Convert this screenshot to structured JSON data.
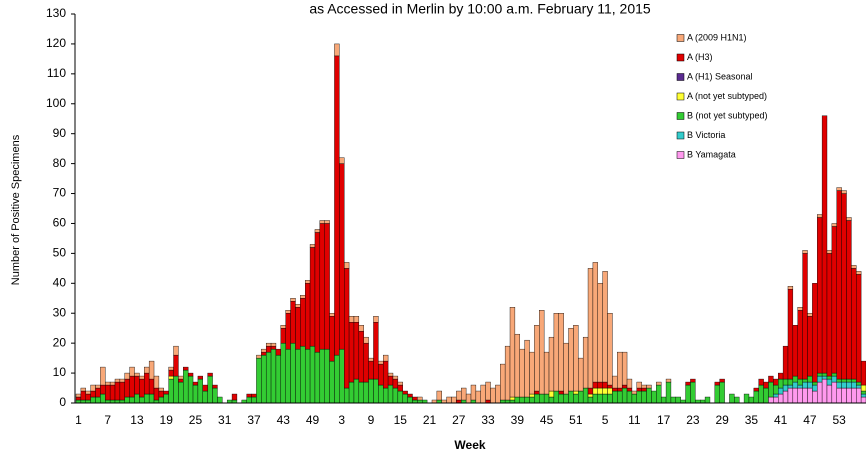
{
  "chart_data": {
    "type": "bar",
    "stacked": true,
    "title": "as Accessed in Merlin by 10:00 a.m. February 11, 2015",
    "x_label": "Week",
    "y_label": "Number of Positive Specimens",
    "ylim": [
      0,
      130
    ],
    "yticks": [
      0,
      10,
      20,
      30,
      40,
      50,
      60,
      70,
      80,
      90,
      100,
      110,
      120,
      130
    ],
    "grid": false,
    "legend_position": "top-right",
    "categories": [
      "1",
      null,
      null,
      null,
      null,
      null,
      "7",
      null,
      null,
      null,
      null,
      null,
      "13",
      null,
      null,
      null,
      null,
      null,
      "19",
      null,
      null,
      null,
      null,
      null,
      "25",
      null,
      null,
      null,
      null,
      null,
      "31",
      null,
      null,
      null,
      null,
      null,
      "37",
      null,
      null,
      null,
      null,
      null,
      "43",
      null,
      null,
      null,
      null,
      null,
      "49",
      null,
      null,
      null,
      null,
      null,
      "3",
      null,
      null,
      null,
      null,
      null,
      "9",
      null,
      null,
      null,
      null,
      null,
      "15",
      null,
      null,
      null,
      null,
      null,
      "21",
      null,
      null,
      null,
      null,
      null,
      "27",
      null,
      null,
      null,
      null,
      null,
      "33",
      null,
      null,
      null,
      null,
      null,
      "39",
      null,
      null,
      null,
      null,
      null,
      "45",
      null,
      null,
      null,
      null,
      null,
      "51",
      null,
      null,
      null,
      null,
      null,
      "5",
      null,
      null,
      null,
      null,
      null,
      "11",
      null,
      null,
      null,
      null,
      null,
      "17",
      null,
      null,
      null,
      null,
      null,
      "23",
      null,
      null,
      null,
      null,
      null,
      "29",
      null,
      null,
      null,
      null,
      null,
      "35",
      null,
      null,
      null,
      null,
      null,
      "41",
      null,
      null,
      null,
      null,
      null,
      "47",
      null,
      null,
      null,
      null,
      null,
      "53",
      null,
      null,
      null,
      null,
      null
    ],
    "series": [
      {
        "name": "A (2009 H1N1)",
        "color": "#f8a878",
        "values": [
          1,
          1,
          1,
          2,
          1,
          6,
          1,
          1,
          1,
          1,
          2,
          3,
          1,
          1,
          2,
          6,
          4,
          1,
          0,
          1,
          3,
          1,
          0,
          0,
          0,
          0,
          0,
          0,
          0,
          0,
          0,
          0,
          0,
          0,
          0,
          0,
          0,
          1,
          1,
          1,
          1,
          0,
          1,
          1,
          1,
          1,
          1,
          1,
          1,
          1,
          1,
          1,
          1,
          4,
          2,
          2,
          2,
          2,
          2,
          2,
          1,
          2,
          1,
          2,
          1,
          1,
          1,
          0,
          0,
          0,
          1,
          0,
          0,
          1,
          3,
          1,
          2,
          2,
          3,
          4,
          3,
          5,
          4,
          6,
          6,
          5,
          6,
          12,
          18,
          30,
          21,
          16,
          19,
          14,
          22,
          28,
          14,
          18,
          26,
          26,
          17,
          21,
          22,
          11,
          17,
          40,
          40,
          33,
          37,
          24,
          4,
          12,
          11,
          3,
          1,
          2,
          1,
          1,
          0,
          1,
          0,
          1,
          0,
          0,
          0,
          0,
          0,
          0,
          0,
          0,
          0,
          0,
          0,
          0,
          0,
          0,
          0,
          0,
          0,
          0,
          0,
          0,
          0,
          0,
          0,
          0,
          1,
          0,
          1,
          1,
          1,
          0,
          1,
          0,
          1,
          1,
          1,
          1,
          1,
          1,
          1,
          0
        ]
      },
      {
        "name": "A (H3)",
        "color": "#e00000",
        "values": [
          1,
          3,
          2,
          2,
          3,
          3,
          5,
          5,
          6,
          6,
          6,
          7,
          6,
          6,
          7,
          5,
          4,
          2,
          1,
          2,
          7,
          1,
          1,
          1,
          1,
          1,
          2,
          1,
          1,
          0,
          0,
          0,
          2,
          0,
          0,
          1,
          1,
          0,
          1,
          2,
          1,
          2,
          5,
          12,
          14,
          14,
          16,
          22,
          33,
          40,
          42,
          42,
          15,
          100,
          62,
          40,
          20,
          19,
          17,
          13,
          6,
          19,
          7,
          9,
          3,
          3,
          2,
          1,
          1,
          1,
          0,
          0,
          0,
          0,
          0,
          0,
          0,
          0,
          1,
          0,
          0,
          0,
          0,
          0,
          1,
          0,
          0,
          0,
          0,
          0,
          0,
          0,
          0,
          0,
          1,
          0,
          0,
          0,
          0,
          1,
          0,
          0,
          0,
          0,
          0,
          2,
          2,
          2,
          2,
          1,
          1,
          1,
          1,
          1,
          0,
          1,
          1,
          0,
          0,
          0,
          0,
          0,
          0,
          0,
          0,
          1,
          1,
          0,
          0,
          0,
          0,
          1,
          1,
          0,
          0,
          0,
          0,
          0,
          0,
          1,
          2,
          2,
          2,
          2,
          2,
          11,
          30,
          17,
          23,
          42,
          20,
          33,
          52,
          86,
          41,
          49,
          63,
          62,
          53,
          37,
          36,
          8
        ]
      },
      {
        "name": "A (H1) Seasonal",
        "color": "#5a2a90",
        "values": [
          0,
          0,
          0,
          0,
          0,
          0,
          0,
          0,
          0,
          0,
          0,
          0,
          0,
          0,
          0,
          0,
          0,
          0,
          0,
          0,
          0,
          0,
          0,
          0,
          0,
          0,
          0,
          0,
          0,
          0,
          0,
          0,
          0,
          0,
          0,
          0,
          0,
          0,
          0,
          0,
          0,
          0,
          0,
          0,
          0,
          0,
          0,
          0,
          0,
          0,
          0,
          0,
          0,
          0,
          0,
          0,
          0,
          0,
          0,
          0,
          0,
          0,
          0,
          0,
          0,
          0,
          0,
          0,
          0,
          0,
          0,
          0,
          0,
          0,
          0,
          0,
          0,
          0,
          0,
          0,
          0,
          0,
          0,
          0,
          0,
          0,
          0,
          0,
          0,
          0,
          0,
          0,
          0,
          0,
          0,
          0,
          0,
          0,
          0,
          0,
          0,
          0,
          0,
          0,
          0,
          0,
          0,
          0,
          0,
          0,
          0,
          0,
          0,
          0,
          0,
          0,
          0,
          0,
          0,
          0,
          0,
          0,
          0,
          0,
          0,
          0,
          0,
          0,
          0,
          0,
          0,
          0,
          0,
          0,
          0,
          0,
          0,
          0,
          0,
          0,
          0,
          0,
          0,
          0,
          0,
          0,
          0,
          0,
          0,
          0,
          0,
          0,
          0,
          0,
          0,
          0,
          0,
          0,
          0,
          0,
          0,
          0
        ]
      },
      {
        "name": "A (not yet subtyped)",
        "color": "#ffff33",
        "values": [
          0,
          0,
          0,
          0,
          0,
          0,
          0,
          0,
          0,
          0,
          0,
          0,
          0,
          0,
          0,
          0,
          0,
          0,
          0,
          1,
          0,
          0,
          0,
          0,
          0,
          0,
          0,
          0,
          0,
          0,
          0,
          0,
          0,
          0,
          0,
          0,
          0,
          0,
          0,
          0,
          0,
          0,
          0,
          0,
          0,
          0,
          0,
          0,
          0,
          0,
          0,
          0,
          0,
          0,
          0,
          0,
          0,
          0,
          0,
          0,
          0,
          0,
          0,
          0,
          0,
          0,
          0,
          0,
          0,
          0,
          0,
          0,
          0,
          0,
          0,
          0,
          0,
          0,
          0,
          0,
          0,
          0,
          0,
          0,
          0,
          0,
          0,
          0,
          0,
          1,
          0,
          0,
          0,
          1,
          0,
          0,
          0,
          2,
          0,
          0,
          0,
          0,
          1,
          0,
          0,
          1,
          2,
          2,
          2,
          2,
          0,
          0,
          0,
          0,
          0,
          0,
          0,
          0,
          0,
          0,
          0,
          0,
          0,
          0,
          0,
          0,
          0,
          0,
          0,
          0,
          0,
          0,
          0,
          0,
          0,
          0,
          0,
          0,
          0,
          0,
          0,
          0,
          0,
          0,
          0,
          0,
          0,
          0,
          0,
          0,
          0,
          0,
          0,
          0,
          0,
          0,
          0,
          0,
          0,
          0,
          0,
          2
        ]
      },
      {
        "name": "B (not yet subtyped)",
        "color": "#33cc33",
        "values": [
          1,
          1,
          1,
          2,
          2,
          3,
          1,
          1,
          1,
          1,
          2,
          2,
          3,
          2,
          3,
          3,
          1,
          2,
          3,
          8,
          9,
          7,
          11,
          9,
          6,
          8,
          4,
          9,
          5,
          2,
          0,
          1,
          1,
          0,
          1,
          2,
          2,
          15,
          16,
          17,
          18,
          16,
          20,
          18,
          20,
          18,
          19,
          18,
          19,
          17,
          18,
          18,
          14,
          16,
          18,
          5,
          7,
          8,
          7,
          7,
          8,
          8,
          6,
          5,
          6,
          5,
          4,
          3,
          2,
          1,
          1,
          1,
          0,
          0,
          1,
          0,
          0,
          0,
          0,
          1,
          0,
          1,
          0,
          0,
          0,
          0,
          0,
          1,
          1,
          1,
          2,
          2,
          2,
          2,
          3,
          3,
          3,
          2,
          4,
          3,
          3,
          4,
          3,
          4,
          5,
          2,
          3,
          3,
          3,
          3,
          4,
          4,
          5,
          4,
          3,
          4,
          4,
          5,
          4,
          6,
          2,
          7,
          2,
          2,
          1,
          6,
          7,
          1,
          1,
          2,
          0,
          6,
          7,
          0,
          3,
          2,
          0,
          3,
          2,
          4,
          6,
          5,
          5,
          3,
          3,
          2,
          2,
          2,
          2,
          1,
          2,
          1,
          1,
          1,
          1,
          1,
          1,
          1,
          1,
          1,
          1,
          1
        ]
      },
      {
        "name": "B Victoria",
        "color": "#33cccc",
        "values": [
          0,
          0,
          0,
          0,
          0,
          0,
          0,
          0,
          0,
          0,
          0,
          0,
          0,
          0,
          0,
          0,
          0,
          0,
          0,
          0,
          0,
          0,
          0,
          0,
          0,
          0,
          0,
          0,
          0,
          0,
          0,
          0,
          0,
          0,
          0,
          0,
          0,
          0,
          0,
          0,
          0,
          0,
          0,
          0,
          0,
          0,
          0,
          0,
          0,
          0,
          0,
          0,
          0,
          0,
          0,
          0,
          0,
          0,
          0,
          0,
          0,
          0,
          0,
          0,
          0,
          0,
          0,
          0,
          0,
          0,
          0,
          0,
          0,
          0,
          0,
          0,
          0,
          0,
          0,
          0,
          0,
          0,
          0,
          0,
          0,
          0,
          0,
          0,
          0,
          0,
          0,
          0,
          0,
          0,
          0,
          0,
          0,
          0,
          0,
          0,
          0,
          0,
          0,
          0,
          0,
          0,
          0,
          0,
          0,
          0,
          0,
          0,
          0,
          0,
          0,
          0,
          0,
          0,
          0,
          0,
          0,
          0,
          0,
          0,
          0,
          0,
          0,
          0,
          0,
          0,
          0,
          0,
          0,
          0,
          0,
          0,
          0,
          0,
          0,
          0,
          0,
          0,
          0,
          1,
          2,
          2,
          1,
          2,
          1,
          2,
          2,
          2,
          2,
          1,
          2,
          2,
          2,
          2,
          2,
          2,
          1,
          1
        ]
      },
      {
        "name": "B Yamagata",
        "color": "#ff99ee",
        "values": [
          0,
          0,
          0,
          0,
          0,
          0,
          0,
          0,
          0,
          0,
          0,
          0,
          0,
          0,
          0,
          0,
          0,
          0,
          0,
          0,
          0,
          0,
          0,
          0,
          0,
          0,
          0,
          0,
          0,
          0,
          0,
          0,
          0,
          0,
          0,
          0,
          0,
          0,
          0,
          0,
          0,
          0,
          0,
          0,
          0,
          0,
          0,
          0,
          0,
          0,
          0,
          0,
          0,
          0,
          0,
          0,
          0,
          0,
          0,
          0,
          0,
          0,
          0,
          0,
          0,
          0,
          0,
          0,
          0,
          0,
          0,
          0,
          0,
          0,
          0,
          0,
          0,
          0,
          0,
          0,
          0,
          0,
          0,
          0,
          0,
          0,
          0,
          0,
          0,
          0,
          0,
          0,
          0,
          0,
          0,
          0,
          0,
          0,
          0,
          0,
          0,
          0,
          0,
          0,
          0,
          0,
          0,
          0,
          0,
          0,
          0,
          0,
          0,
          0,
          0,
          0,
          0,
          0,
          0,
          0,
          0,
          0,
          0,
          0,
          0,
          0,
          0,
          0,
          0,
          0,
          0,
          0,
          0,
          0,
          0,
          0,
          0,
          0,
          0,
          0,
          0,
          0,
          2,
          2,
          3,
          4,
          5,
          5,
          5,
          5,
          5,
          4,
          7,
          8,
          6,
          7,
          5,
          5,
          5,
          5,
          5,
          2
        ]
      }
    ]
  }
}
